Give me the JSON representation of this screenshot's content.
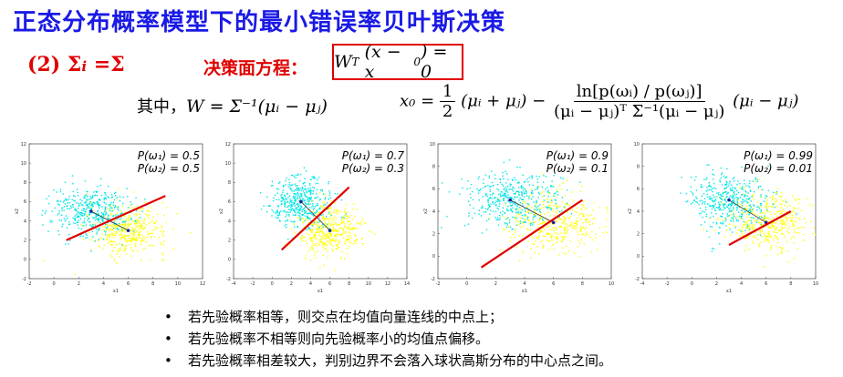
{
  "title": "正态分布概率模型下的最小错误率贝叶斯决策",
  "case_label": "(2) Σ",
  "case_sub": "i",
  "case_rest": " =Σ",
  "decision_label": "决策面方程：",
  "decision_equation": {
    "W": "W",
    "T": "T",
    "body": "(x − x",
    "sub": "0",
    "rhs": ") = 0"
  },
  "where_label": "其中，",
  "where_equation": "W = Σ⁻¹(μᵢ − μⱼ)",
  "x0_lhs": "x₀ =",
  "x0_half_num": "1",
  "x0_half_den": "2",
  "x0_term1": "(μᵢ + μⱼ) −",
  "x0_frac_num": "ln[p(ωᵢ) / p(ωⱼ)]",
  "x0_frac_den": "(μᵢ − μⱼ)ᵀ Σ⁻¹(μᵢ − μⱼ)",
  "x0_term2": "(μᵢ − μⱼ)",
  "bullets": [
    "若先验概率相等，则交点在均值向量连线的中点上；",
    "若先验概率不相等则向先验概率小的均值点偏移。",
    "若先验概率相差较大，判别边界不会落入球状高斯分布的中心点之间。"
  ],
  "chart_data": [
    {
      "type": "scatter",
      "legend": [
        "P(ω₁) = 0.5",
        "P(ω₂) = 0.5"
      ],
      "xlabel": "x1",
      "ylabel": "x2",
      "xlim": [
        -2,
        12
      ],
      "ylim": [
        -2,
        12
      ],
      "xticks": [
        -2,
        0,
        2,
        4,
        6,
        8,
        10,
        12
      ],
      "yticks": [
        -2,
        0,
        2,
        4,
        6,
        8,
        10,
        12
      ],
      "mean1": [
        3,
        5
      ],
      "mean2": [
        6,
        3
      ],
      "boundary": [
        [
          1,
          2
        ],
        [
          9,
          6.6
        ]
      ],
      "colors": {
        "class1": "#00e5e5",
        "class2": "#ffff00",
        "boundary": "#e00000"
      }
    },
    {
      "type": "scatter",
      "legend": [
        "P(ω₁) = 0.7",
        "P(ω₂) = 0.3"
      ],
      "xlabel": "x1",
      "ylabel": "x2",
      "xlim": [
        -4,
        14
      ],
      "ylim": [
        -2,
        12
      ],
      "xticks": [
        -4,
        -2,
        0,
        2,
        4,
        6,
        8,
        10,
        12,
        14
      ],
      "yticks": [
        -2,
        0,
        2,
        4,
        6,
        8,
        10,
        12
      ],
      "mean1": [
        3,
        6
      ],
      "mean2": [
        6,
        3
      ],
      "boundary": [
        [
          1,
          1
        ],
        [
          8,
          7.5
        ]
      ],
      "colors": {
        "class1": "#00e5e5",
        "class2": "#ffff00",
        "boundary": "#e00000"
      }
    },
    {
      "type": "scatter",
      "legend": [
        "P(ω₁) = 0.9",
        "P(ω₂) = 0.1"
      ],
      "xlabel": "x1",
      "ylabel": "x2",
      "xlim": [
        -2,
        10
      ],
      "ylim": [
        -2,
        10
      ],
      "xticks": [
        -2,
        0,
        2,
        4,
        6,
        8,
        10
      ],
      "yticks": [
        -2,
        0,
        2,
        4,
        6,
        8,
        10
      ],
      "mean1": [
        3,
        5
      ],
      "mean2": [
        6,
        3
      ],
      "boundary": [
        [
          1,
          -1
        ],
        [
          8,
          5
        ]
      ],
      "colors": {
        "class1": "#00e5e5",
        "class2": "#ffff00",
        "boundary": "#e00000"
      }
    },
    {
      "type": "scatter",
      "legend": [
        "P(ω₁) = 0.99",
        "P(ω₂) = 0.01"
      ],
      "xlabel": "x1",
      "ylabel": "x2",
      "xlim": [
        -4,
        10
      ],
      "ylim": [
        -2,
        10
      ],
      "xticks": [
        -4,
        -2,
        0,
        2,
        4,
        6,
        8,
        10
      ],
      "yticks": [
        -2,
        0,
        2,
        4,
        6,
        8,
        10
      ],
      "mean1": [
        3,
        5
      ],
      "mean2": [
        6,
        3
      ],
      "boundary": [
        [
          3,
          1
        ],
        [
          8,
          4
        ]
      ],
      "colors": {
        "class1": "#00e5e5",
        "class2": "#ffff00",
        "boundary": "#e00000"
      }
    }
  ]
}
